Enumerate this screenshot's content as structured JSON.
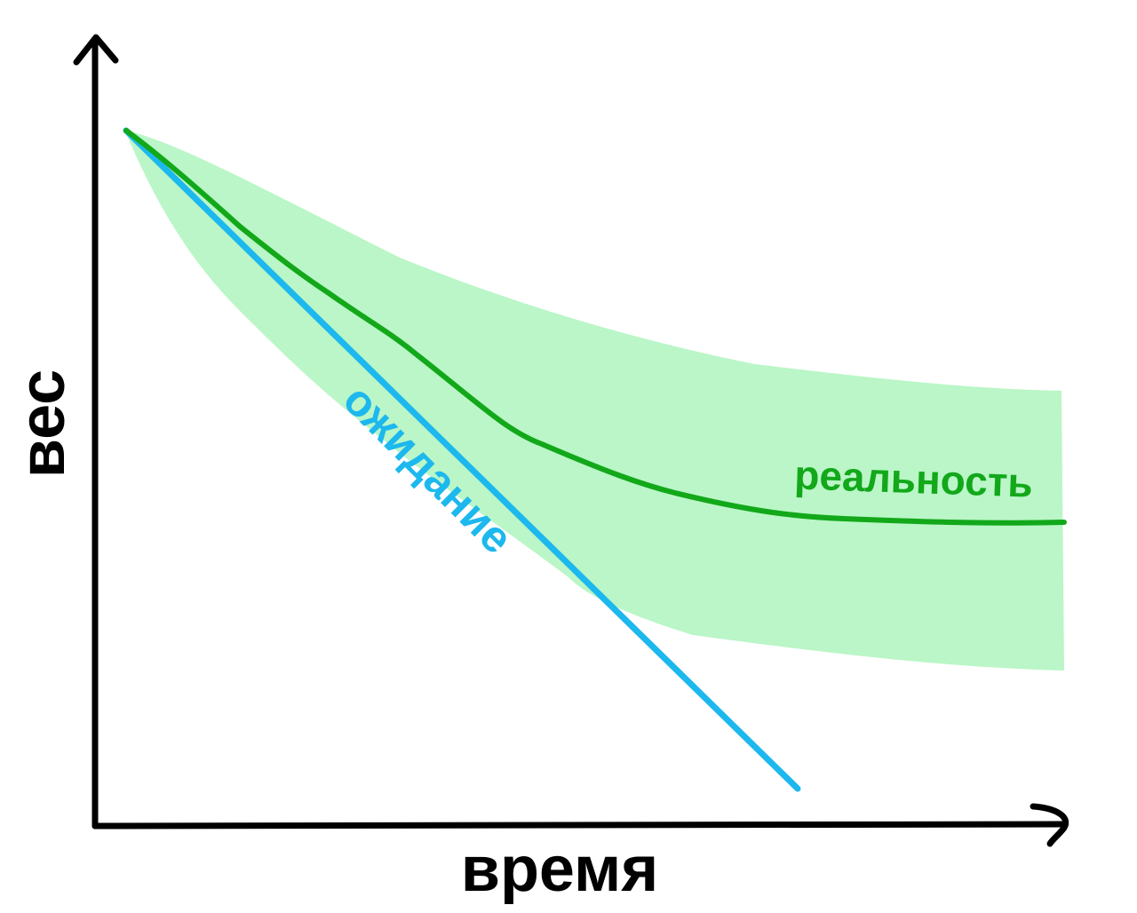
{
  "axes": {
    "y_label": "вес",
    "x_label": "время"
  },
  "curves": {
    "expected": {
      "label": "ожидание"
    },
    "reality": {
      "label": "реальность"
    }
  }
}
